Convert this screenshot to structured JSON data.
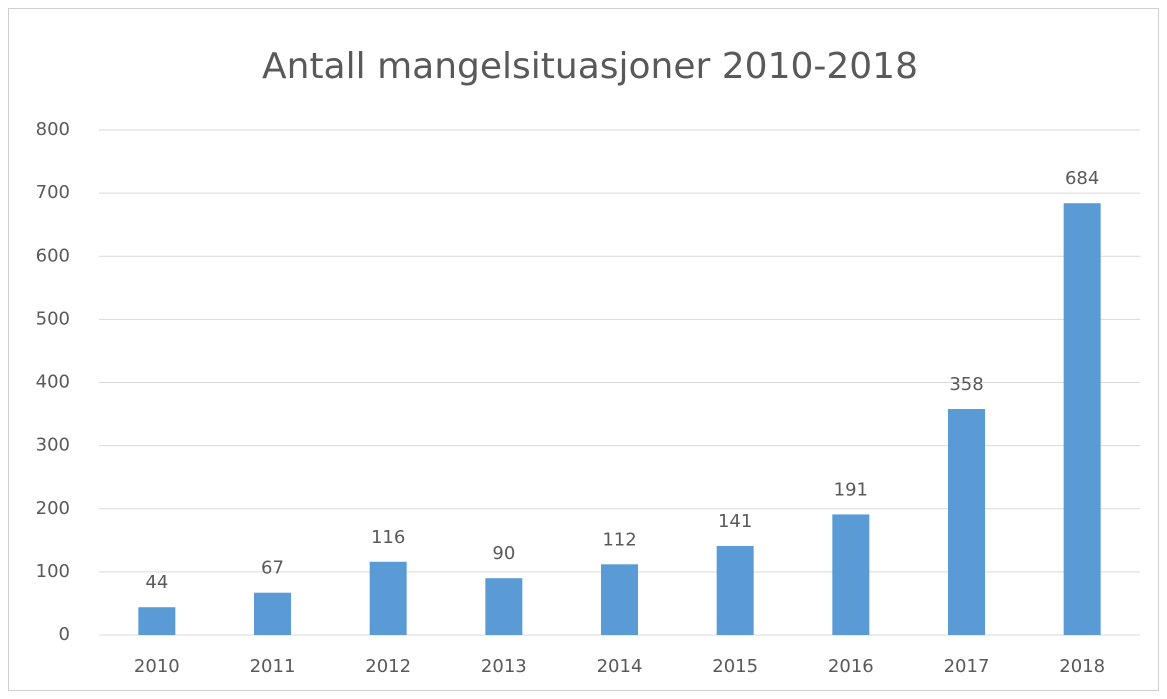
{
  "chart_data": {
    "type": "bar",
    "title": "Antall mangelsituasjoner 2010-2018",
    "categories": [
      "2010",
      "2011",
      "2012",
      "2013",
      "2014",
      "2015",
      "2016",
      "2017",
      "2018"
    ],
    "values": [
      44,
      67,
      116,
      90,
      112,
      141,
      191,
      358,
      684
    ],
    "color": "#5b9bd5",
    "ylim": [
      0,
      800
    ],
    "yticks": [
      0,
      100,
      200,
      300,
      400,
      500,
      600,
      700,
      800
    ],
    "grid": true
  }
}
